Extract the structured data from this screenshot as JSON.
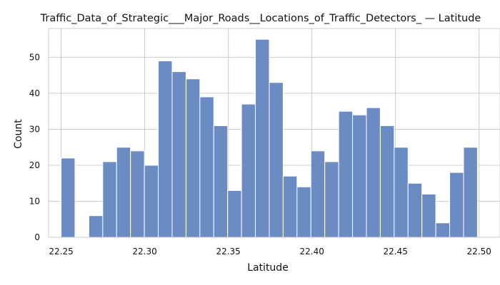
{
  "chart_data": {
    "type": "bar",
    "title": "Traffic_Data_of_Strategic___Major_Roads__Locations_of_Traffic_Detectors_ — Latitude",
    "xlabel": "Latitude",
    "ylabel": "Count",
    "xlim": [
      22.2425,
      22.5125
    ],
    "ylim": [
      0,
      58
    ],
    "xticks": [
      "22.25",
      "22.30",
      "22.35",
      "22.40",
      "22.45",
      "22.50"
    ],
    "yticks": [
      "0",
      "10",
      "20",
      "30",
      "40",
      "50"
    ],
    "bin_width": 0.0083,
    "bins": [
      {
        "x0": 22.25,
        "count": 22
      },
      {
        "x0": 22.2583,
        "count": 0
      },
      {
        "x0": 22.2666,
        "count": 6
      },
      {
        "x0": 22.2749,
        "count": 21
      },
      {
        "x0": 22.2832,
        "count": 25
      },
      {
        "x0": 22.2915,
        "count": 24
      },
      {
        "x0": 22.2998,
        "count": 20
      },
      {
        "x0": 22.3081,
        "count": 49
      },
      {
        "x0": 22.3164,
        "count": 46
      },
      {
        "x0": 22.3247,
        "count": 44
      },
      {
        "x0": 22.333,
        "count": 39
      },
      {
        "x0": 22.3413,
        "count": 31
      },
      {
        "x0": 22.3496,
        "count": 13
      },
      {
        "x0": 22.3579,
        "count": 37
      },
      {
        "x0": 22.3662,
        "count": 55
      },
      {
        "x0": 22.3745,
        "count": 43
      },
      {
        "x0": 22.3828,
        "count": 17
      },
      {
        "x0": 22.3911,
        "count": 14
      },
      {
        "x0": 22.3994,
        "count": 24
      },
      {
        "x0": 22.4077,
        "count": 21
      },
      {
        "x0": 22.416,
        "count": 35
      },
      {
        "x0": 22.4243,
        "count": 34
      },
      {
        "x0": 22.4326,
        "count": 36
      },
      {
        "x0": 22.4409,
        "count": 31
      },
      {
        "x0": 22.4492,
        "count": 25
      },
      {
        "x0": 22.4575,
        "count": 15
      },
      {
        "x0": 22.4658,
        "count": 12
      },
      {
        "x0": 22.4741,
        "count": 4
      },
      {
        "x0": 22.4824,
        "count": 18
      },
      {
        "x0": 22.4907,
        "count": 25
      }
    ],
    "grid": true,
    "colors": {
      "bar": "#6b8cc2",
      "grid": "#cccccc"
    }
  }
}
